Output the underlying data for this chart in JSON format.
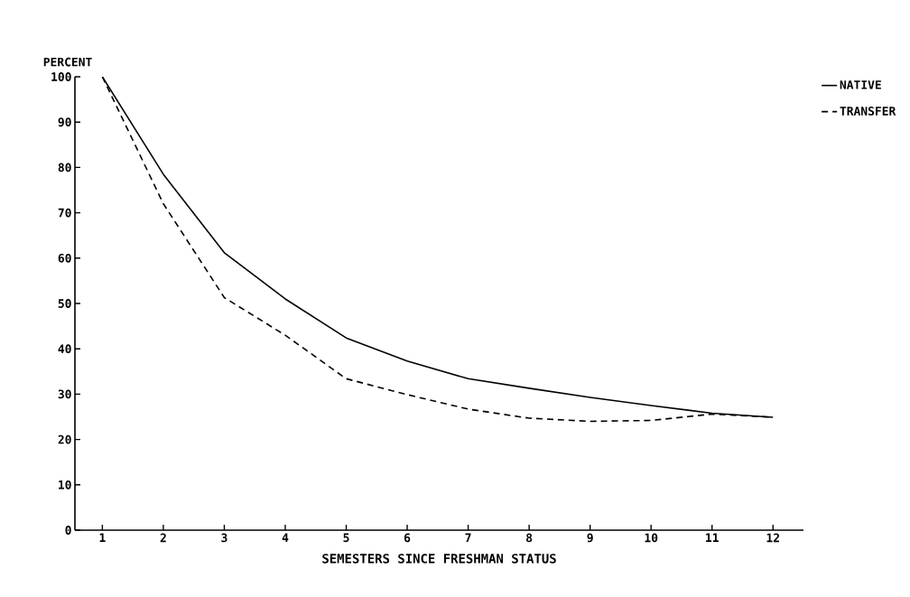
{
  "chart_data": {
    "type": "line",
    "xlabel": "SEMESTERS SINCE FRESHMAN STATUS",
    "ylabel": "PERCENT",
    "x": [
      1,
      2,
      3,
      4,
      5,
      6,
      7,
      8,
      9,
      10,
      11,
      12
    ],
    "xlim": [
      0.55,
      12.5
    ],
    "xticks": [
      1,
      2,
      3,
      4,
      5,
      6,
      7,
      8,
      9,
      10,
      11,
      12
    ],
    "ylim": [
      0,
      100
    ],
    "yticks": [
      0,
      10,
      20,
      30,
      40,
      50,
      60,
      70,
      80,
      90,
      100
    ],
    "legend": "top right",
    "grid": false,
    "marker": "none",
    "series": [
      {
        "name": "NATIVE",
        "color": "#000000",
        "line_style": "solid",
        "values": [
          100,
          78.5,
          61.2,
          51,
          42.4,
          37.3,
          33.4,
          31.3,
          29.3,
          27.5,
          25.8,
          24.9
        ]
      },
      {
        "name": "TRANSFER",
        "color": "#000000",
        "line_style": "dashed",
        "values": [
          100,
          72,
          51.3,
          43,
          33.4,
          29.9,
          26.7,
          24.7,
          24,
          24.2,
          25.6,
          24.9
        ]
      }
    ]
  }
}
